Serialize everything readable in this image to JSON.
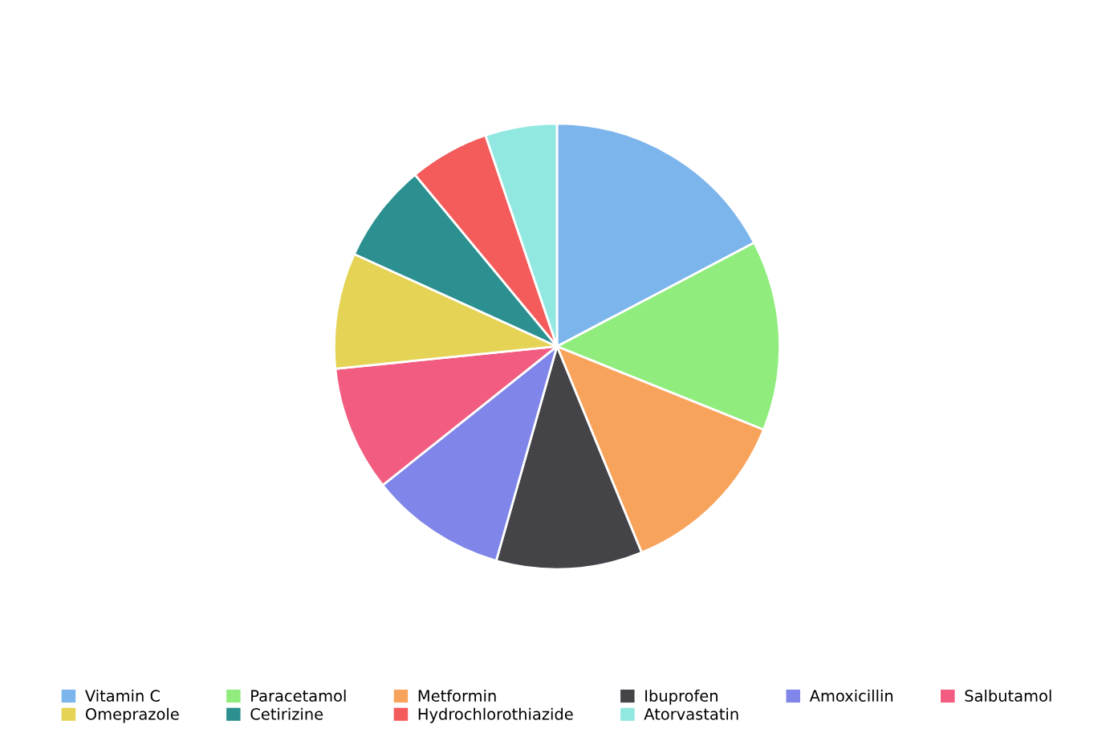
{
  "chart_data": {
    "type": "pie",
    "categories": [
      "Vitamin C",
      "Paracetamol",
      "Metformin",
      "Ibuprofen",
      "Amoxicillin",
      "Salbutamol",
      "Omeprazole",
      "Cetirizine",
      "Hydrochlorothiazide",
      "Atorvastatin"
    ],
    "values": [
      17.3,
      13.8,
      12.7,
      10.6,
      9.9,
      9.1,
      8.4,
      7.2,
      5.8,
      5.2
    ],
    "colors": [
      "#7cb5ec",
      "#90ed7d",
      "#f7a35c",
      "#434348",
      "#8085e9",
      "#f15c80",
      "#e4d354",
      "#2b908f",
      "#f45b5b",
      "#91e8e1"
    ],
    "legend": "bottom"
  }
}
